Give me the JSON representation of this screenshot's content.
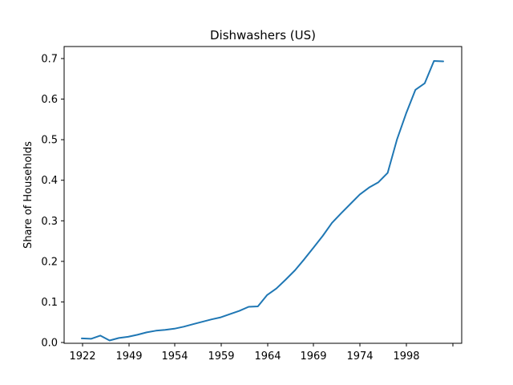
{
  "chart_data": {
    "type": "line",
    "title": "Dishwashers (US)",
    "xlabel": "",
    "ylabel": "Share of Households",
    "x_tick_labels": [
      "1922",
      "1949",
      "1954",
      "1959",
      "1964",
      "1969",
      "1974",
      "1998",
      ""
    ],
    "y_ticks": [
      0.0,
      0.1,
      0.2,
      0.3,
      0.4,
      0.5,
      0.6,
      0.7
    ],
    "y_tick_labels": [
      "0.0",
      "0.1",
      "0.2",
      "0.3",
      "0.4",
      "0.5",
      "0.6",
      "0.7"
    ],
    "ylim": [
      0.0,
      0.7
    ],
    "grid": false,
    "legend": "none",
    "line_color": "#1f77b4",
    "series": [
      {
        "values": [
          0.01,
          0.009,
          0.017,
          0.005,
          0.011,
          0.014,
          0.019,
          0.025,
          0.029,
          0.031,
          0.034,
          0.039,
          0.045,
          0.051,
          0.057,
          0.062,
          0.07,
          0.078,
          0.088,
          0.089,
          0.117,
          0.133,
          0.155,
          0.178,
          0.205,
          0.234,
          0.263,
          0.295,
          0.319,
          0.342,
          0.365,
          0.382,
          0.395,
          0.418,
          0.5,
          0.565,
          0.623,
          0.639,
          0.694,
          0.693
        ]
      }
    ]
  }
}
